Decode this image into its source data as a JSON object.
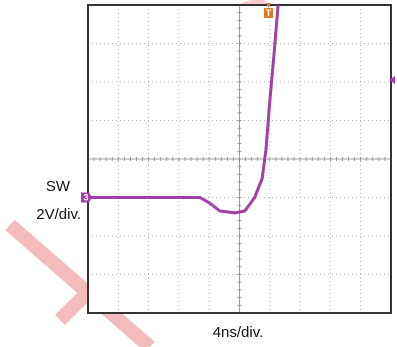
{
  "chart_data": {
    "type": "line",
    "channel_label": "SW",
    "y_scale_label": "2V/div.",
    "x_scale_label": "4ns/div.",
    "channel_marker": "3",
    "trigger_marker": "T",
    "x": [
      0,
      14.8,
      16.1,
      17.4,
      19.4,
      20.7,
      22.0,
      23.0,
      23.5,
      24.0,
      24.6,
      25.1
    ],
    "series": [
      {
        "name": "SW",
        "color": "#a43ea8",
        "values": [
          0,
          0,
          -0.3,
          -0.7,
          -0.8,
          -0.7,
          0,
          1.0,
          2.5,
          5.0,
          7.6,
          10.0
        ]
      }
    ],
    "xlim": [
      0,
      40
    ],
    "ylim": [
      -6,
      10
    ],
    "xticks": [
      0,
      4,
      8,
      12,
      16,
      20,
      24,
      28,
      32,
      36,
      40
    ],
    "yticks": [
      -6,
      -4,
      -2,
      0,
      2,
      4,
      6,
      8,
      10
    ],
    "grid": true
  }
}
